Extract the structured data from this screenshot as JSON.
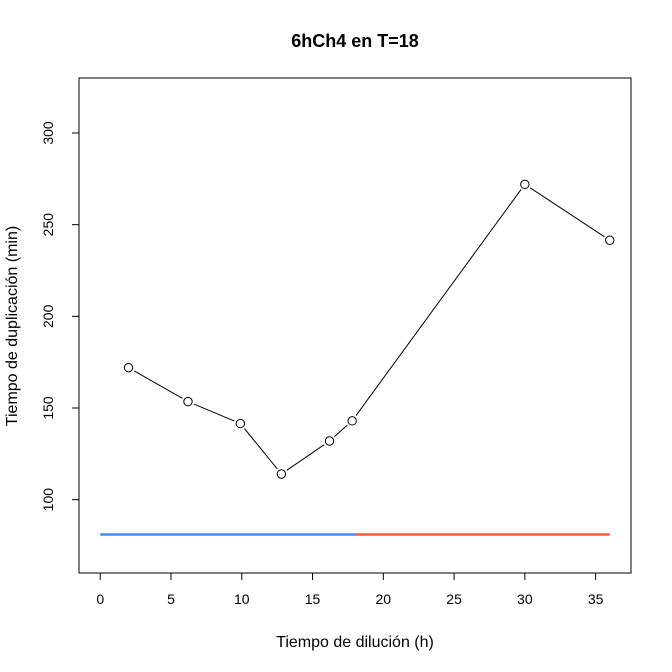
{
  "chart_data": {
    "type": "line",
    "title": "6hCh4 en T=18",
    "xlabel": "Tiempo de dilución (h)",
    "ylabel": "Tiempo de duplicación (min)",
    "xlim": [
      -1.5,
      37.5
    ],
    "ylim": [
      60,
      330
    ],
    "xticks": [
      0,
      5,
      10,
      15,
      20,
      25,
      30,
      35
    ],
    "yticks": [
      100,
      150,
      200,
      250,
      300
    ],
    "grid": false,
    "series": [
      {
        "x": [
          2,
          6.2,
          9.9,
          12.8,
          16.2,
          17.8,
          30,
          36
        ],
        "y": [
          172,
          153.5,
          141.5,
          114,
          132,
          143,
          272,
          241.5
        ],
        "style": "line-with-open-circles",
        "color": "#000000"
      }
    ],
    "segments": [
      {
        "x": [
          0,
          18
        ],
        "y": 81,
        "color": "#3f8ef7"
      },
      {
        "x": [
          18,
          36
        ],
        "y": 81,
        "color": "#ff5a31"
      }
    ]
  }
}
